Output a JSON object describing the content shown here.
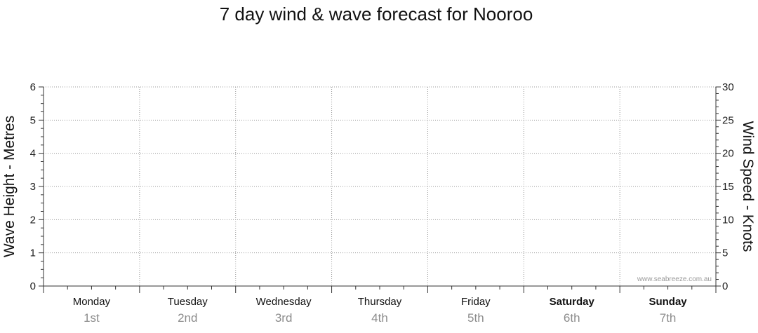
{
  "chart_data": {
    "type": "line",
    "title": "7 day wind & wave forecast for Nooroo",
    "y_left": {
      "label": "Wave Height - Metres",
      "range": [
        0,
        6
      ],
      "ticks": [
        0,
        1,
        2,
        3,
        4,
        5,
        6
      ]
    },
    "y_right": {
      "label": "Wind Speed - Knots",
      "range": [
        0,
        30
      ],
      "ticks": [
        0,
        5,
        10,
        15,
        20,
        25,
        30
      ]
    },
    "days": [
      {
        "name": "Monday",
        "date": "1st",
        "weekend": false
      },
      {
        "name": "Tuesday",
        "date": "2nd",
        "weekend": false
      },
      {
        "name": "Wednesday",
        "date": "3rd",
        "weekend": false
      },
      {
        "name": "Thursday",
        "date": "4th",
        "weekend": false
      },
      {
        "name": "Friday",
        "date": "5th",
        "weekend": false
      },
      {
        "name": "Saturday",
        "date": "6th",
        "weekend": true
      },
      {
        "name": "Sunday",
        "date": "7th",
        "weekend": true
      }
    ],
    "series": [],
    "grid": true,
    "watermark": "www.seabreeze.com.au"
  }
}
